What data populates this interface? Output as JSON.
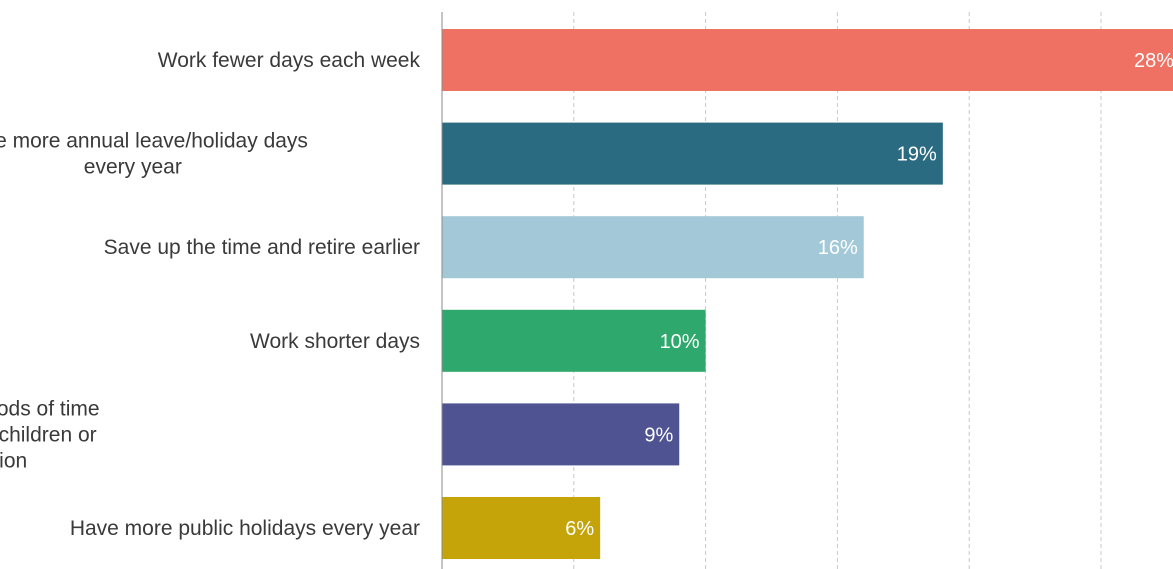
{
  "chart_data": {
    "type": "bar",
    "orientation": "horizontal",
    "categories": [
      [
        "Work fewer days each week"
      ],
      [
        "Have more annual leave/holiday days",
        "every year"
      ],
      [
        "Save up the time and retire earlier"
      ],
      [
        "Work shorter days"
      ],
      [
        "Have the option to take periods of time",
        "out of work, e.g. to care for children or",
        "study for a qualification"
      ],
      [
        "Have more public holidays every year"
      ]
    ],
    "values": [
      28,
      19,
      16,
      10,
      9,
      6
    ],
    "value_labels": [
      "28%",
      "19%",
      "16%",
      "10%",
      "9%",
      "6%"
    ],
    "colors": [
      "#ee7163",
      "#2b6b82",
      "#a3c9d8",
      "#2ea86d",
      "#4f5392",
      "#c4a408"
    ],
    "xlim": [
      0,
      28
    ],
    "x_grid_values": [
      5,
      10,
      15,
      20,
      25
    ],
    "grid": true,
    "unit": "%"
  }
}
